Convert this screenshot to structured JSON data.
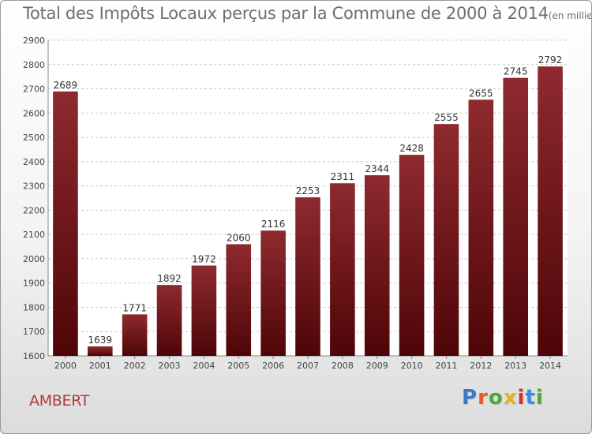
{
  "chart_data": {
    "type": "bar",
    "title": "Total des Impôts Locaux perçus par la Commune de 2000 à 2014",
    "unit_note": "(en milliers d'€)",
    "categories": [
      "2000",
      "2001",
      "2002",
      "2003",
      "2004",
      "2005",
      "2006",
      "2007",
      "2008",
      "2009",
      "2010",
      "2011",
      "2012",
      "2013",
      "2014"
    ],
    "values": [
      2689,
      1639,
      1771,
      1892,
      1972,
      2060,
      2116,
      2253,
      2311,
      2344,
      2428,
      2555,
      2655,
      2745,
      2792
    ],
    "ylim": [
      1600,
      2900
    ],
    "yticks": [
      1600,
      1700,
      1800,
      1900,
      2000,
      2100,
      2200,
      2300,
      2400,
      2500,
      2600,
      2700,
      2800,
      2900
    ],
    "xlabel": "",
    "ylabel": "",
    "grid": true,
    "bar_color": "#7a1a1f"
  },
  "footer": {
    "commune": "AMBERT",
    "logo": [
      "P",
      "r",
      "o",
      "x",
      "i",
      "t",
      "i"
    ]
  }
}
